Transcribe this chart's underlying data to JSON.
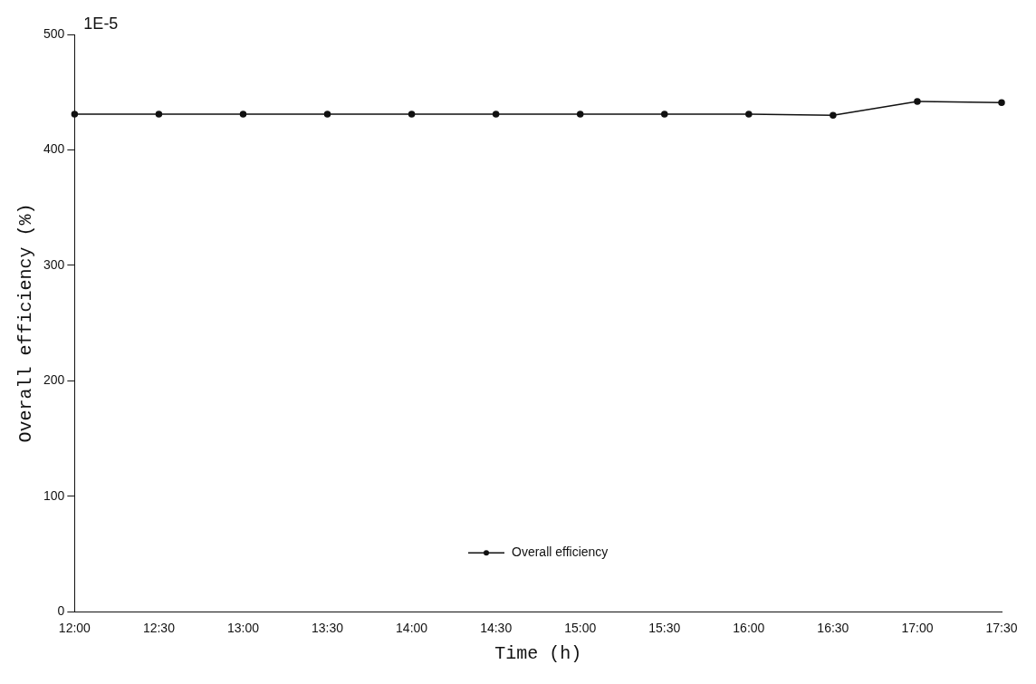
{
  "chart_data": {
    "type": "line",
    "xlabel": "Time (h)",
    "ylabel": "Overall efficiency (%)",
    "annotations": [
      "1E-5"
    ],
    "categories": [
      "12:00",
      "12:30",
      "13:00",
      "13:30",
      "14:00",
      "14:30",
      "15:00",
      "15:30",
      "16:00",
      "16:30",
      "17:00",
      "17:30"
    ],
    "series": [
      {
        "name": "Overall efficiency",
        "color": "#111111",
        "values": [
          431,
          431,
          431,
          431,
          431,
          431,
          431,
          431,
          431,
          430,
          442,
          441
        ]
      }
    ],
    "ylim": [
      0,
      500
    ],
    "yticks": [
      0,
      100,
      200,
      300,
      400,
      500
    ],
    "grid": false,
    "legend": "bottom",
    "marker": "circle",
    "line_style": "solid"
  }
}
